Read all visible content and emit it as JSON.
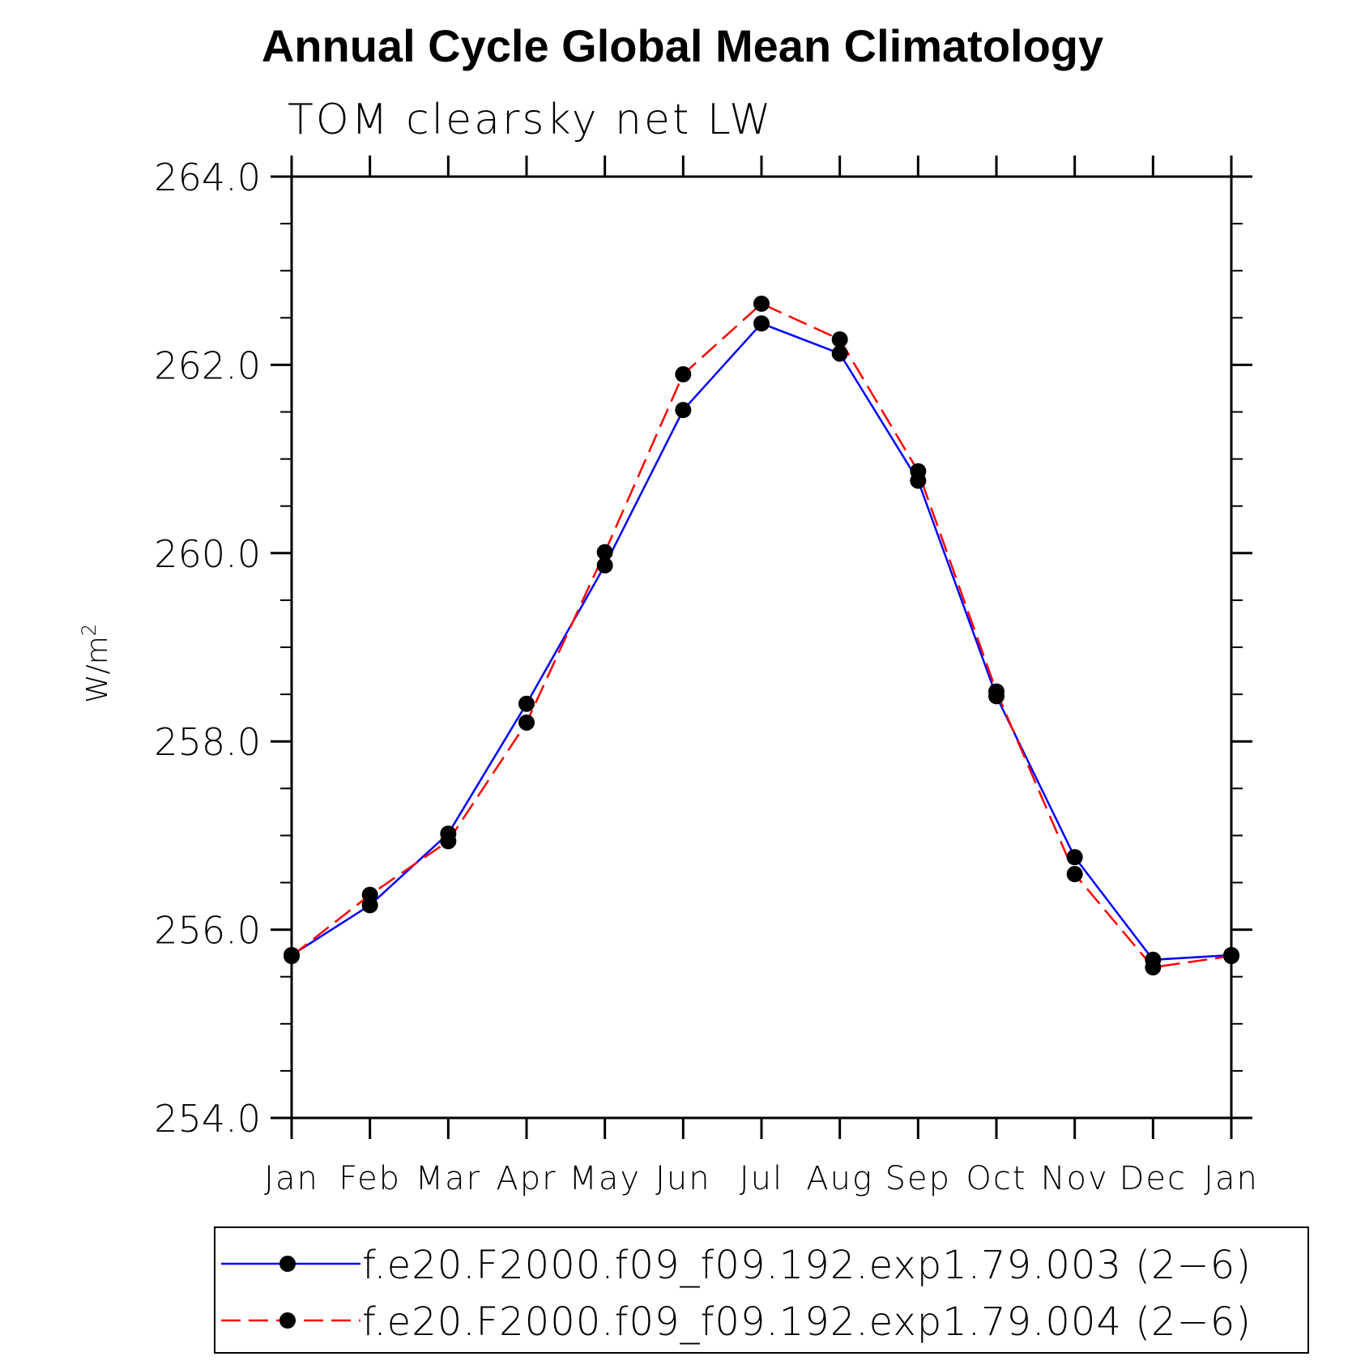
{
  "chart_data": {
    "type": "line",
    "title": "Annual Cycle Global Mean Climatology",
    "subtitle": "TOM clearsky net LW",
    "ylabel": "W/m",
    "ylabel_superscript": "2",
    "xlabel": "",
    "categories": [
      "Jan",
      "Feb",
      "Mar",
      "Apr",
      "May",
      "Jun",
      "Jul",
      "Aug",
      "Sep",
      "Oct",
      "Nov",
      "Dec",
      "Jan"
    ],
    "ylim": [
      254.0,
      264.0
    ],
    "yticks": [
      "254.0",
      "256.0",
      "258.0",
      "260.0",
      "262.0",
      "264.0"
    ],
    "grid": false,
    "legend_position": "bottom",
    "series": [
      {
        "name": "f.e20.F2000.f09_f09.192.exp1.79.003 (2−6)",
        "color": "#0000ff",
        "style": "solid",
        "values": [
          255.73,
          256.26,
          257.02,
          258.4,
          259.87,
          261.52,
          262.44,
          262.12,
          260.77,
          258.48,
          256.77,
          255.68,
          255.73
        ]
      },
      {
        "name": "f.e20.F2000.f09_f09.192.exp1.79.004 (2−6)",
        "color": "#ff0000",
        "style": "dashed",
        "values": [
          255.72,
          256.37,
          256.94,
          258.2,
          260.01,
          261.9,
          262.65,
          262.27,
          260.87,
          258.53,
          256.59,
          255.6,
          255.72
        ]
      }
    ]
  }
}
